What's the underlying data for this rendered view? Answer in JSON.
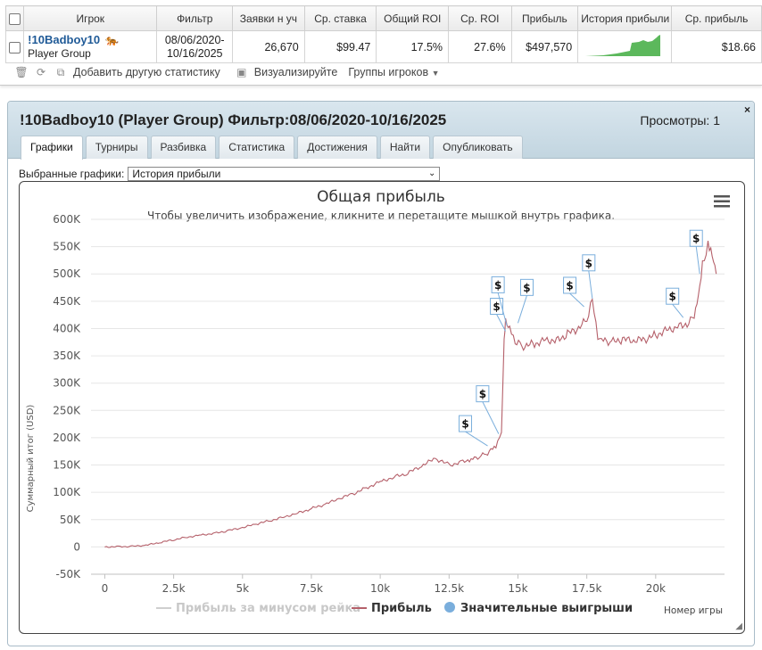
{
  "table": {
    "headers": [
      "Игрок",
      "Фильтр",
      "Заявки н уч",
      "Ср. ставка",
      "Общий ROI",
      "Ср. ROI",
      "Прибыль",
      "История прибыли",
      "Ср. прибыль"
    ],
    "row": {
      "player_name": "!10Badboy10",
      "player_group": "Player Group",
      "filter_line1": "08/06/2020-",
      "filter_line2": "10/16/2025",
      "entries": "26,670",
      "avg_stake": "$99.47",
      "total_roi": "17.5%",
      "avg_roi": "27.6%",
      "profit": "$497,570",
      "avg_profit": "$18.66",
      "tiger_icon": "🐅"
    }
  },
  "toolbar": {
    "add_stats": "Добавить другую статистику",
    "visualize": "Визуализируйте",
    "groups": "Группы игроков"
  },
  "panel": {
    "title": "!10Badboy10 (Player Group) Фильтр:08/06/2020-10/16/2025",
    "views": "Просмотры: 1",
    "close": "×",
    "tabs": [
      "Графики",
      "Турниры",
      "Разбивка",
      "Статистика",
      "Достижения",
      "Найти",
      "Опубликовать"
    ],
    "active_tab": "Графики",
    "selector_label": "Выбранные графики:",
    "selector_value": "История прибыли"
  },
  "chart_data": {
    "type": "line",
    "title": "Общая прибыль",
    "subtitle": "Чтобы увеличить изображение, кликните и перетащите мышкой внутрь графика.",
    "ylabel": "Суммарный итог (USD)",
    "xlabel": "Номер игры",
    "ylim": [
      -50000,
      600000
    ],
    "xlim": [
      -500,
      22500
    ],
    "y_ticks": [
      -50000,
      0,
      50000,
      100000,
      150000,
      200000,
      250000,
      300000,
      350000,
      400000,
      450000,
      500000,
      550000,
      600000
    ],
    "y_tick_labels": [
      "-50K",
      "0",
      "50K",
      "100K",
      "150K",
      "200K",
      "250K",
      "300K",
      "350K",
      "400K",
      "450K",
      "500K",
      "550K",
      "600K"
    ],
    "x_ticks": [
      0,
      2500,
      5000,
      7500,
      10000,
      12500,
      15000,
      17500,
      20000
    ],
    "x_tick_labels": [
      "0",
      "2.5k",
      "5k",
      "7.5k",
      "10k",
      "12.5k",
      "15k",
      "17.5k",
      "20k"
    ],
    "legend": [
      "Прибыль за минусом рейка",
      "Прибыль",
      "Значительные выигрыши"
    ],
    "legend_placement": "bottom",
    "series": [
      {
        "name": "Прибыль",
        "x": [
          0,
          500,
          1000,
          1500,
          2000,
          2500,
          3000,
          3500,
          4000,
          4500,
          5000,
          5500,
          6000,
          6500,
          7000,
          7500,
          8000,
          8500,
          9000,
          9500,
          10000,
          10500,
          11000,
          11500,
          12000,
          12500,
          13000,
          13300,
          13600,
          13900,
          14200,
          14400,
          14500,
          14550,
          14700,
          14900,
          15200,
          15600,
          16000,
          16400,
          16800,
          17200,
          17500,
          17700,
          17900,
          18100,
          18400,
          18800,
          19200,
          19600,
          20000,
          20400,
          20800,
          21200,
          21400,
          21550,
          21700,
          21900,
          22000,
          22100,
          22200
        ],
        "values": [
          0,
          500,
          1000,
          3000,
          8000,
          13000,
          18000,
          22000,
          25000,
          30000,
          35000,
          42000,
          48000,
          55000,
          62000,
          70000,
          78000,
          88000,
          97000,
          108000,
          120000,
          128000,
          135000,
          148000,
          162000,
          150000,
          156000,
          160000,
          165000,
          172000,
          185000,
          210000,
          375000,
          410000,
          400000,
          375000,
          368000,
          372000,
          380000,
          378000,
          390000,
          400000,
          415000,
          460000,
          385000,
          378000,
          375000,
          380000,
          377000,
          380000,
          388000,
          398000,
          403000,
          410000,
          420000,
          460000,
          520000,
          555000,
          545000,
          525000,
          500000
        ]
      }
    ],
    "big_wins": [
      {
        "x": 13900,
        "y": 185000
      },
      {
        "x": 14300,
        "y": 207000
      },
      {
        "x": 14550,
        "y": 395000
      },
      {
        "x": 14600,
        "y": 405000
      },
      {
        "x": 15000,
        "y": 410000
      },
      {
        "x": 17400,
        "y": 440000
      },
      {
        "x": 17700,
        "y": 455000
      },
      {
        "x": 21000,
        "y": 420000
      },
      {
        "x": 21600,
        "y": 500000
      }
    ],
    "big_win_marker": "$",
    "colors": {
      "line": "#b5606a",
      "line_rake": "#cfcfcf",
      "big_wins": "#7aaedc",
      "grid": "#e6e6e6"
    }
  }
}
